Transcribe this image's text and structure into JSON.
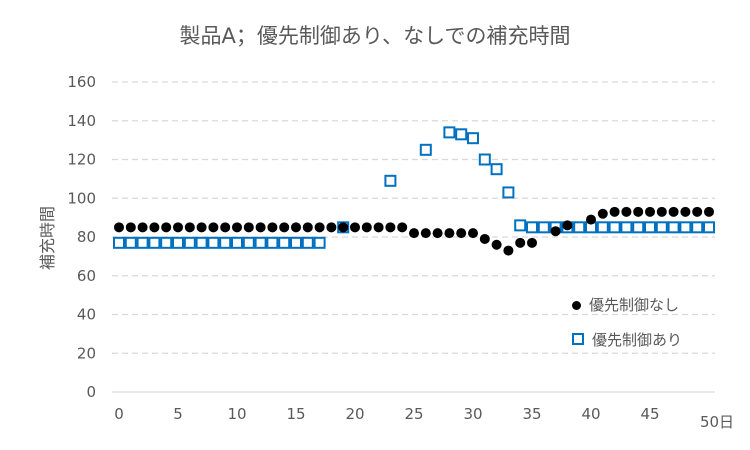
{
  "chart_data": {
    "type": "scatter",
    "title": "製品A；優先制御あり、なしでの補充時間",
    "ylabel": "補充時間",
    "xlabel": "",
    "x_unit": "日",
    "xlim": [
      0,
      50
    ],
    "ylim": [
      0,
      160
    ],
    "xticks": [
      0,
      5,
      10,
      15,
      20,
      25,
      30,
      35,
      40,
      45,
      50
    ],
    "yticks": [
      0,
      20,
      40,
      60,
      80,
      100,
      120,
      140,
      160
    ],
    "grid": "horizontal dashed",
    "legend": "right",
    "series": [
      {
        "name": "優先制御なし",
        "marker": "circle",
        "color": "#000000",
        "x": [
          0,
          1,
          2,
          3,
          4,
          5,
          6,
          7,
          8,
          9,
          10,
          11,
          12,
          13,
          14,
          15,
          16,
          17,
          18,
          19,
          20,
          21,
          22,
          23,
          24,
          25,
          26,
          27,
          28,
          29,
          30,
          31,
          32,
          33,
          34,
          35,
          37,
          38,
          40,
          41,
          42,
          43,
          44,
          45,
          46,
          47,
          48,
          49,
          50
        ],
        "y": [
          85,
          85,
          85,
          85,
          85,
          85,
          85,
          85,
          85,
          85,
          85,
          85,
          85,
          85,
          85,
          85,
          85,
          85,
          85,
          85,
          85,
          85,
          85,
          85,
          85,
          82,
          82,
          82,
          82,
          82,
          82,
          79,
          76,
          73,
          77,
          77,
          83,
          86,
          89,
          92,
          93,
          93,
          93,
          93,
          93,
          93,
          93,
          93,
          93
        ]
      },
      {
        "name": "優先制御あり",
        "marker": "square",
        "color": "#0070C0",
        "x": [
          0,
          1,
          2,
          3,
          4,
          5,
          6,
          7,
          8,
          9,
          10,
          11,
          12,
          13,
          14,
          15,
          16,
          17,
          19,
          23,
          26,
          28,
          29,
          30,
          31,
          32,
          33,
          34,
          35,
          36,
          37,
          38,
          39,
          40,
          41,
          42,
          43,
          44,
          45,
          46,
          47,
          48,
          49,
          50
        ],
        "y": [
          77,
          77,
          77,
          77,
          77,
          77,
          77,
          77,
          77,
          77,
          77,
          77,
          77,
          77,
          77,
          77,
          77,
          77,
          85,
          109,
          125,
          134,
          133,
          131,
          120,
          115,
          103,
          86,
          85,
          85,
          85,
          85,
          85,
          85,
          85,
          85,
          85,
          85,
          85,
          85,
          85,
          85,
          85,
          85
        ]
      }
    ]
  }
}
